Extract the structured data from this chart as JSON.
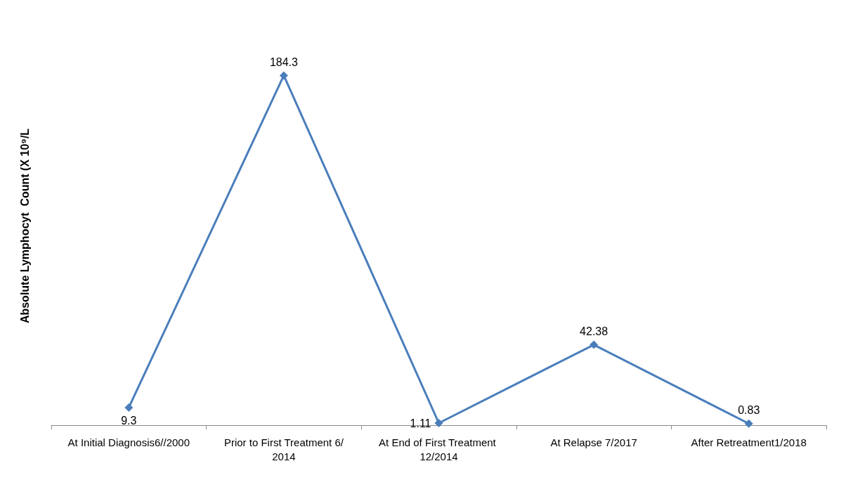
{
  "chart_data": {
    "type": "line",
    "ylabel": "Absolute Lymphocyt  Count (X 10⁹/L",
    "categories": [
      "At Initial Diagnosis6//2000",
      "Prior to First Treatment 6/2014",
      "At End of First Treatment 12/2014",
      "At Relapse 7/2017",
      "After Retreatment1/2018"
    ],
    "series": [
      {
        "color": "#4a7ebb",
        "values": [
          9.3,
          184.3,
          1.11,
          42.38,
          0.83
        ]
      }
    ],
    "data_labels": true,
    "marker": "diamond",
    "line_style": "solid"
  }
}
